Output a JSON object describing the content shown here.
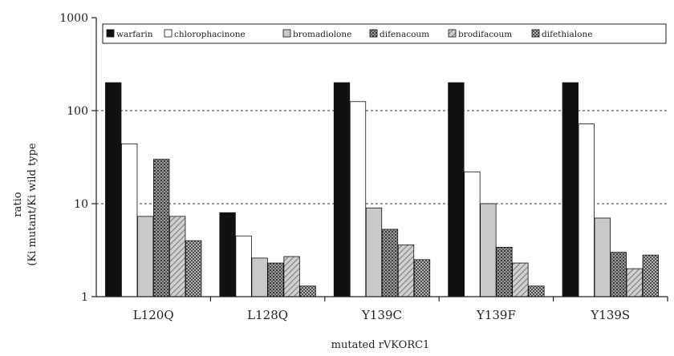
{
  "chart_data": {
    "type": "bar",
    "yscale": "log",
    "ylim": [
      1,
      1000
    ],
    "yticks": [
      "1",
      "10",
      "100",
      "1000"
    ],
    "grid": "dashed horizontal at 10 and 100",
    "legend": "top",
    "xlabel": "mutated rVKORC1",
    "ylabel_lines": [
      "ratio",
      "(Ki mutant/Ki wild type"
    ],
    "categories": [
      "L120Q",
      "L128Q",
      "Y139C",
      "Y139F",
      "Y139S"
    ],
    "series": [
      {
        "name": "warfarin",
        "values": [
          200,
          8,
          200,
          200,
          200
        ]
      },
      {
        "name": "chlorophacinone",
        "values": [
          44,
          4.5,
          125,
          22,
          72
        ]
      },
      {
        "name": "bromadiolone",
        "values": [
          7.3,
          2.6,
          9,
          10,
          7
        ]
      },
      {
        "name": "difenacoum",
        "values": [
          30,
          2.3,
          5.3,
          3.4,
          3
        ]
      },
      {
        "name": "brodifacoum",
        "values": [
          7.3,
          2.7,
          3.6,
          2.3,
          2
        ]
      },
      {
        "name": "difethialone",
        "values": [
          4,
          1.3,
          2.5,
          1.3,
          2.8
        ]
      }
    ],
    "series_styles": [
      {
        "fill": "#111111"
      },
      {
        "fill": "#ffffff"
      },
      {
        "fill": "#c9c9c9"
      },
      {
        "fill": "url(#pat-dots)"
      },
      {
        "fill": "url(#pat-hatch)"
      },
      {
        "fill": "url(#pat-checker)"
      }
    ]
  }
}
